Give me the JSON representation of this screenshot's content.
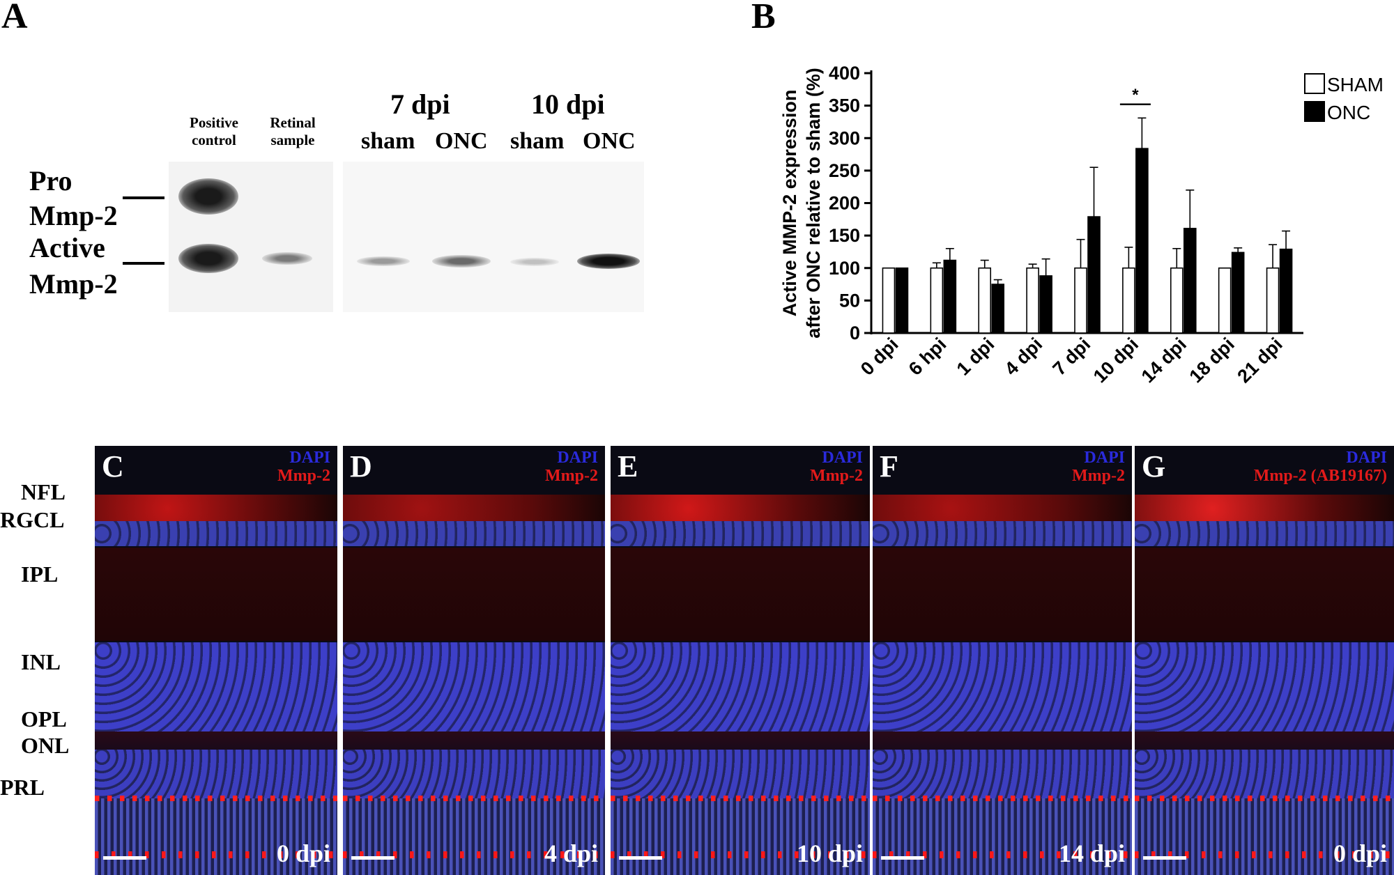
{
  "panel_a": {
    "letter": "A",
    "lane_labels": {
      "positive_control_1": "Positive",
      "positive_control_2": "control",
      "retinal_sample_1": "Retinal",
      "retinal_sample_2": "sample"
    },
    "group_7dpi": "7 dpi",
    "group_10dpi": "10 dpi",
    "sham_1": "sham",
    "onc_1": "ONC",
    "sham_2": "sham",
    "onc_2": "ONC",
    "pro_1": "Pro",
    "pro_2": "Mmp-2",
    "active_1": "Active",
    "active_2": "Mmp-2"
  },
  "panel_b": {
    "letter": "B"
  },
  "chart_data": {
    "type": "bar",
    "ylabel_line1": "Active MMP-2 expression",
    "ylabel_line2": "after ONC relative to sham (%)",
    "ylim": [
      0,
      400
    ],
    "yticks": [
      0,
      50,
      100,
      150,
      200,
      250,
      300,
      350,
      400
    ],
    "categories": [
      "0 dpi",
      "6 hpi",
      "1 dpi",
      "4 dpi",
      "7 dpi",
      "10 dpi",
      "14 dpi",
      "18 dpi",
      "21 dpi"
    ],
    "series": [
      {
        "name": "SHAM",
        "color": "#ffffff",
        "values": [
          100,
          100,
          100,
          100,
          100,
          100,
          100,
          100,
          100
        ],
        "errors": [
          0,
          8,
          12,
          6,
          44,
          32,
          30,
          0,
          36
        ]
      },
      {
        "name": "ONC",
        "color": "#000000",
        "values": [
          100,
          112,
          75,
          88,
          179,
          284,
          161,
          124,
          129
        ],
        "errors": [
          0,
          18,
          7,
          26,
          76,
          47,
          59,
          7,
          28
        ]
      }
    ],
    "legend_position": "top-right",
    "significance": {
      "category": "10 dpi",
      "label": "*"
    }
  },
  "micrographs": [
    {
      "letter": "C",
      "dapi": "DAPI",
      "stain": "Mmp-2",
      "time": "0 dpi"
    },
    {
      "letter": "D",
      "dapi": "DAPI",
      "stain": "Mmp-2",
      "time": "4 dpi"
    },
    {
      "letter": "E",
      "dapi": "DAPI",
      "stain": "Mmp-2",
      "time": "10 dpi"
    },
    {
      "letter": "F",
      "dapi": "DAPI",
      "stain": "Mmp-2",
      "time": "14 dpi"
    },
    {
      "letter": "G",
      "dapi": "DAPI",
      "stain": "Mmp-2 (AB19167)",
      "time": "0 dpi"
    }
  ],
  "layers": [
    "NFL",
    "RGCL",
    "IPL",
    "INL",
    "OPL",
    "ONL",
    "PRL"
  ]
}
